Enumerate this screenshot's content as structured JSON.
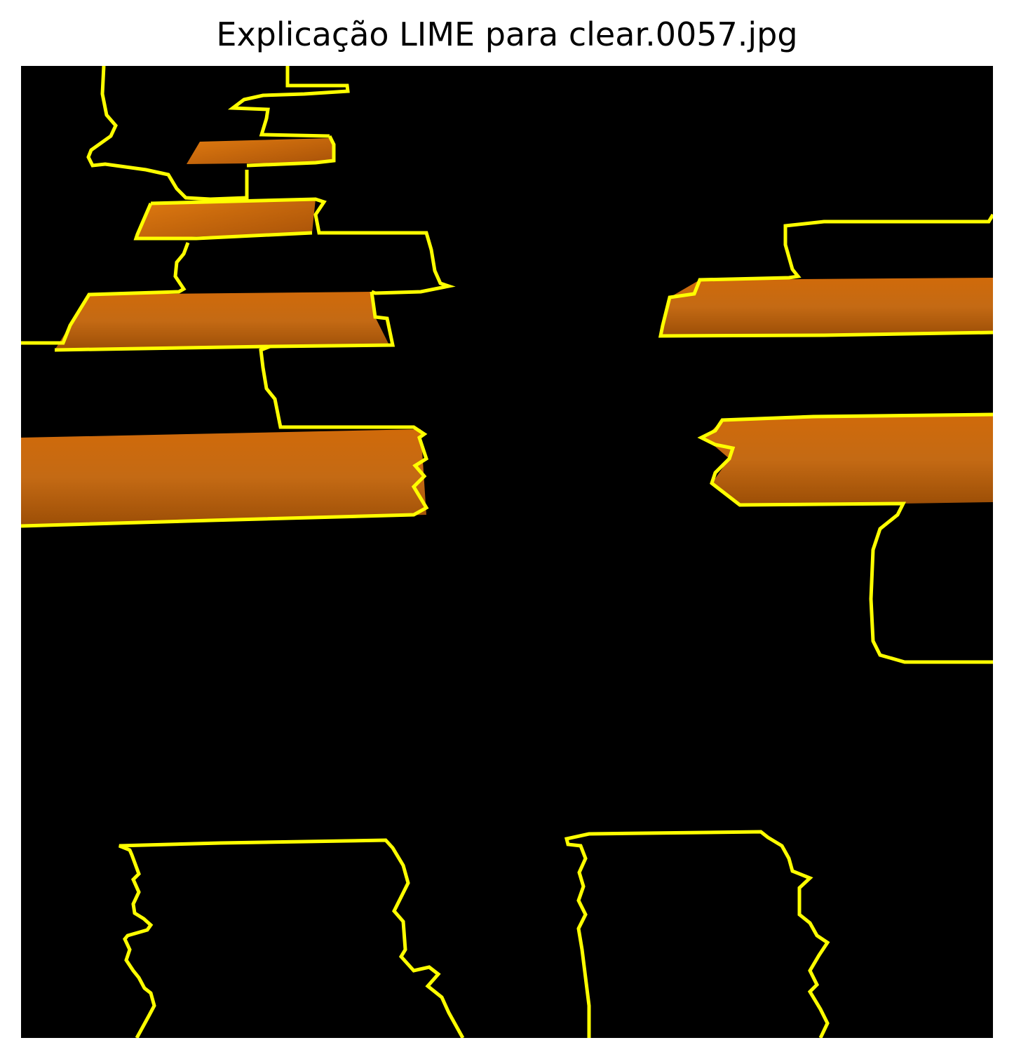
{
  "title": "Explicação LIME para clear.0057.jpg",
  "colors": {
    "background": "#000000",
    "boundary": "#ffff00",
    "segment_light": "#e07a10",
    "segment_dark": "#a85208"
  },
  "figure": {
    "description_name": "lime-explanation-image"
  }
}
